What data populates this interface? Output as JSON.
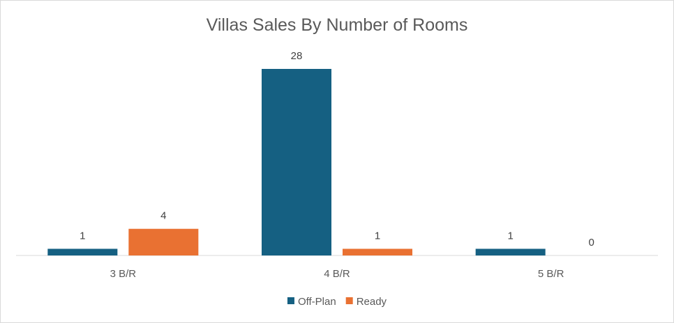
{
  "chart_data": {
    "type": "bar",
    "title": "Villas Sales By Number of Rooms",
    "categories": [
      "3 B/R",
      "4 B/R",
      "5 B/R"
    ],
    "series": [
      {
        "name": "Off-Plan",
        "values": [
          1,
          28,
          1
        ],
        "color": "#156082"
      },
      {
        "name": "Ready",
        "values": [
          4,
          1,
          0
        ],
        "color": "#e97132"
      }
    ],
    "ylim": [
      0,
      28
    ],
    "grid": false,
    "legend": "bottom",
    "data_labels": true
  }
}
